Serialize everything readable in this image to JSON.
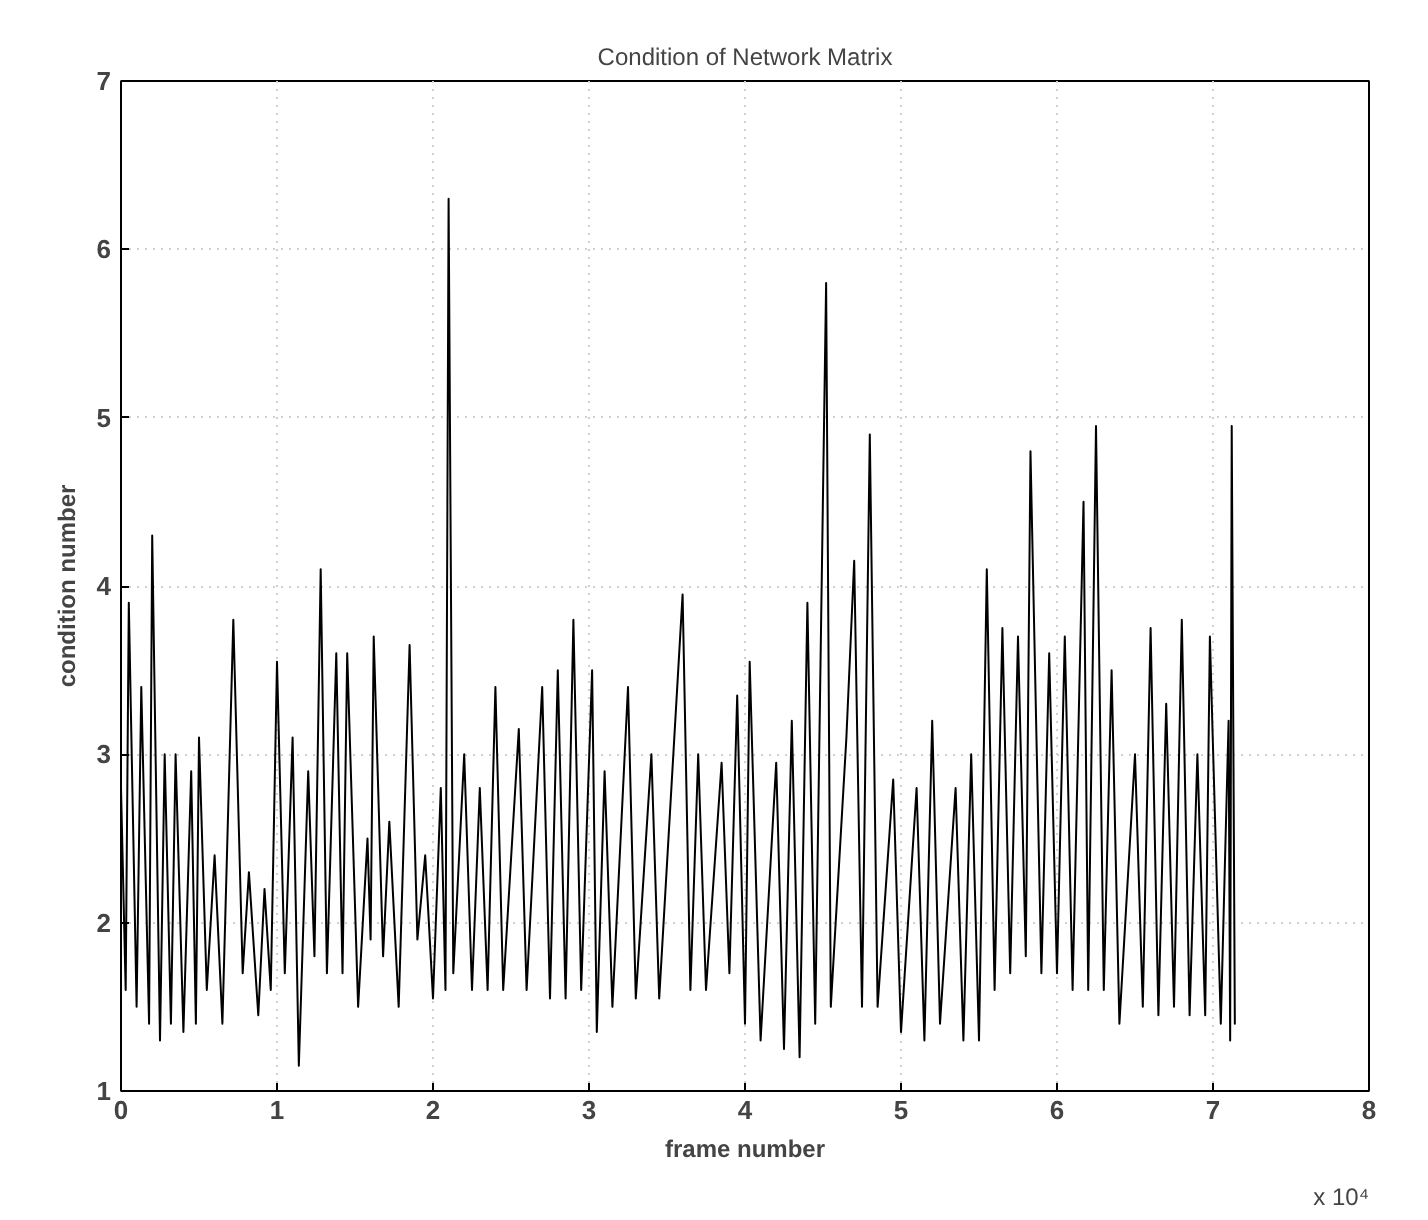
{
  "chart_data": {
    "type": "line",
    "title": "Condition of Network Matrix",
    "xlabel": "frame number",
    "ylabel": "condition number",
    "annotations": [
      "x 10⁴"
    ],
    "x": [
      0,
      0.03,
      0.05,
      0.1,
      0.13,
      0.18,
      0.2,
      0.25,
      0.28,
      0.32,
      0.35,
      0.4,
      0.45,
      0.48,
      0.5,
      0.55,
      0.6,
      0.65,
      0.72,
      0.78,
      0.82,
      0.88,
      0.92,
      0.96,
      1.0,
      1.05,
      1.1,
      1.14,
      1.2,
      1.24,
      1.28,
      1.32,
      1.38,
      1.42,
      1.45,
      1.52,
      1.58,
      1.6,
      1.62,
      1.68,
      1.72,
      1.78,
      1.85,
      1.9,
      1.95,
      2.0,
      2.05,
      2.08,
      2.1,
      2.13,
      2.2,
      2.25,
      2.3,
      2.35,
      2.4,
      2.45,
      2.55,
      2.6,
      2.7,
      2.75,
      2.8,
      2.85,
      2.9,
      2.95,
      3.02,
      3.05,
      3.1,
      3.15,
      3.25,
      3.3,
      3.4,
      3.45,
      3.6,
      3.65,
      3.7,
      3.75,
      3.85,
      3.9,
      3.95,
      4.0,
      4.03,
      4.1,
      4.2,
      4.25,
      4.3,
      4.35,
      4.4,
      4.45,
      4.52,
      4.55,
      4.65,
      4.7,
      4.75,
      4.8,
      4.85,
      4.95,
      5.0,
      5.1,
      5.15,
      5.2,
      5.25,
      5.35,
      5.4,
      5.45,
      5.5,
      5.55,
      5.6,
      5.65,
      5.7,
      5.75,
      5.8,
      5.83,
      5.9,
      5.95,
      6.0,
      6.05,
      6.1,
      6.17,
      6.2,
      6.25,
      6.3,
      6.35,
      6.4,
      6.5,
      6.55,
      6.6,
      6.65,
      6.7,
      6.75,
      6.8,
      6.85,
      6.9,
      6.95,
      6.98,
      7.05,
      7.1,
      7.11,
      7.12,
      7.14
    ],
    "series": [
      {
        "color": "#000000",
        "values": [
          2.8,
          1.6,
          3.9,
          1.5,
          3.4,
          1.4,
          4.3,
          1.3,
          3.0,
          1.4,
          3.0,
          1.35,
          2.9,
          1.4,
          3.1,
          1.6,
          2.4,
          1.4,
          3.8,
          1.7,
          2.3,
          1.45,
          2.2,
          1.6,
          3.55,
          1.7,
          3.1,
          1.15,
          2.9,
          1.8,
          4.1,
          1.7,
          3.6,
          1.7,
          3.6,
          1.5,
          2.5,
          1.9,
          3.7,
          1.8,
          2.6,
          1.5,
          3.65,
          1.9,
          2.4,
          1.55,
          2.8,
          1.6,
          6.3,
          1.7,
          3.0,
          1.6,
          2.8,
          1.6,
          3.4,
          1.6,
          3.15,
          1.6,
          3.4,
          1.55,
          3.5,
          1.55,
          3.8,
          1.6,
          3.5,
          1.35,
          2.9,
          1.5,
          3.4,
          1.55,
          3.0,
          1.55,
          3.95,
          1.6,
          3.0,
          1.6,
          2.95,
          1.7,
          3.35,
          1.4,
          3.55,
          1.3,
          2.95,
          1.25,
          3.2,
          1.2,
          3.9,
          1.4,
          5.8,
          1.5,
          3.1,
          4.15,
          1.5,
          4.9,
          1.5,
          2.85,
          1.35,
          2.8,
          1.3,
          3.2,
          1.4,
          2.8,
          1.3,
          3.0,
          1.3,
          4.1,
          1.6,
          3.75,
          1.7,
          3.7,
          1.8,
          4.8,
          1.7,
          3.6,
          1.7,
          3.7,
          1.6,
          4.5,
          1.6,
          4.95,
          1.6,
          3.5,
          1.4,
          3.0,
          1.5,
          3.75,
          1.45,
          3.3,
          1.5,
          3.8,
          1.45,
          3.0,
          1.45,
          3.7,
          1.4,
          3.2,
          1.3,
          4.95,
          1.4
        ]
      }
    ],
    "xlim": [
      0,
      8
    ],
    "ylim": [
      1,
      7
    ],
    "xticks": [
      0,
      1,
      2,
      3,
      4,
      5,
      6,
      7,
      8
    ],
    "yticks": [
      1,
      2,
      3,
      4,
      5,
      6,
      7
    ],
    "grid": true,
    "line_style": "solid",
    "marker": "none"
  }
}
